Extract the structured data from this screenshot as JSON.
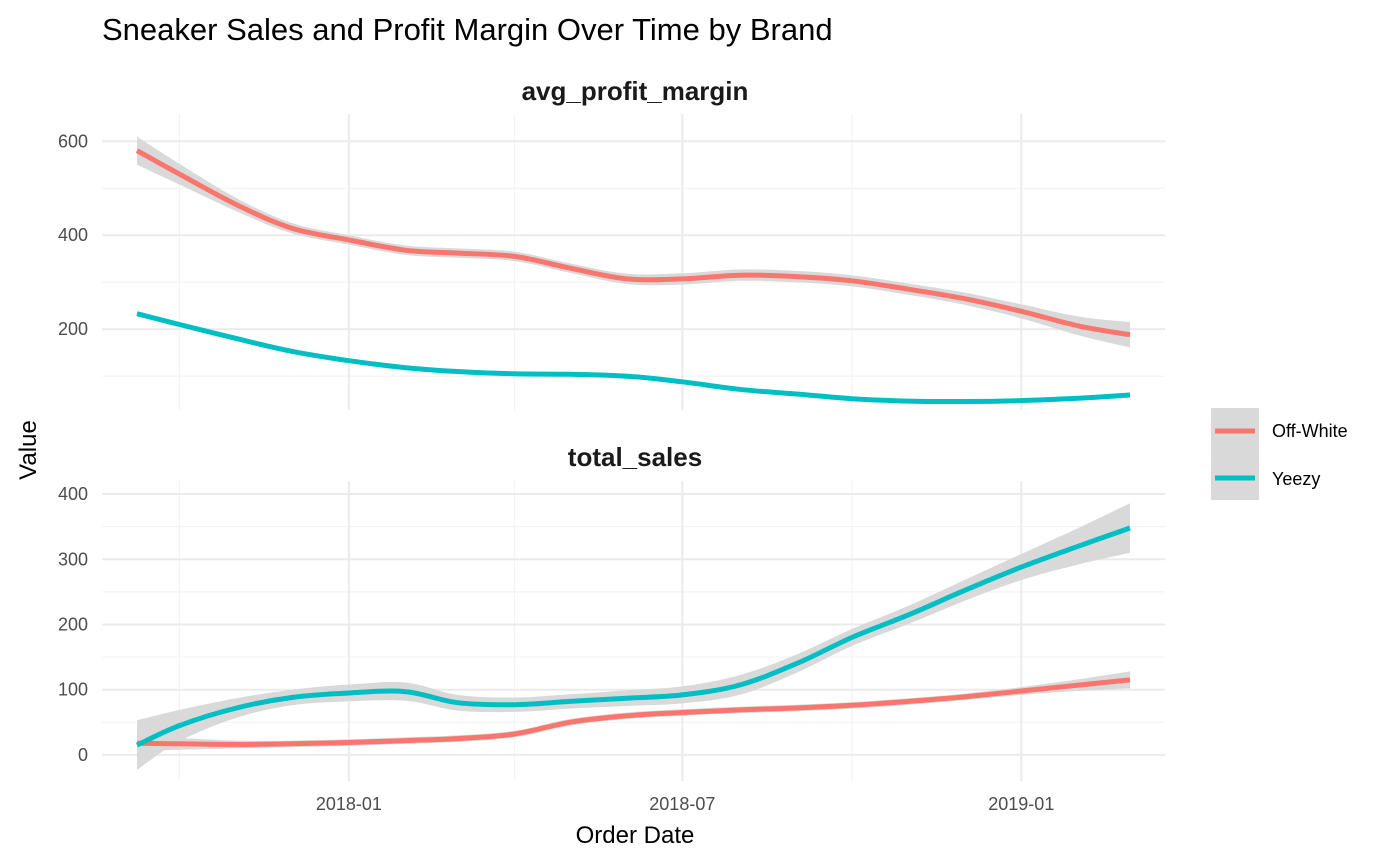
{
  "chart_data": {
    "type": "line",
    "title": "Sneaker Sales and Profit Margin Over Time by Brand",
    "xlabel": "Order Date",
    "ylabel": "Value",
    "x_ticks": [
      "2018-01",
      "2018-07",
      "2019-01"
    ],
    "legend_placement": "right",
    "grid": true,
    "confidence_band_color": "#d9d9d9",
    "legend": [
      {
        "name": "Off-White",
        "color": "#f8766d"
      },
      {
        "name": "Yeezy",
        "color": "#00bfc4"
      }
    ],
    "panels": [
      {
        "name": "avg_profit_margin",
        "ylim": [
          28,
          658
        ],
        "y_ticks": [
          "200",
          "400",
          "600"
        ],
        "y_tick_values": [
          200,
          400,
          600
        ],
        "series": [
          {
            "name": "Off-White",
            "color": "#f8766d",
            "points": [
              [
                "2017-09-08",
                580
              ],
              [
                "2017-10-01",
                530
              ],
              [
                "2017-11-01",
                465
              ],
              [
                "2017-12-01",
                415
              ],
              [
                "2018-01-01",
                390
              ],
              [
                "2018-02-01",
                368
              ],
              [
                "2018-03-01",
                362
              ],
              [
                "2018-04-01",
                355
              ],
              [
                "2018-05-01",
                330
              ],
              [
                "2018-06-01",
                307
              ],
              [
                "2018-07-01",
                307
              ],
              [
                "2018-08-01",
                315
              ],
              [
                "2018-09-01",
                312
              ],
              [
                "2018-10-01",
                303
              ],
              [
                "2018-11-01",
                285
              ],
              [
                "2018-12-01",
                265
              ],
              [
                "2019-01-01",
                238
              ],
              [
                "2019-02-01",
                207
              ],
              [
                "2019-03-01",
                188
              ]
            ],
            "band_halfwidth": [
              30,
              22,
              14,
              11,
              10,
              10,
              10,
              10,
              10,
              11,
              12,
              12,
              12,
              12,
              12,
              13,
              15,
              20,
              27
            ]
          },
          {
            "name": "Yeezy",
            "color": "#00bfc4",
            "points": [
              [
                "2017-09-08",
                233
              ],
              [
                "2017-10-01",
                210
              ],
              [
                "2017-11-01",
                180
              ],
              [
                "2017-12-01",
                153
              ],
              [
                "2018-01-01",
                133
              ],
              [
                "2018-02-01",
                118
              ],
              [
                "2018-03-01",
                110
              ],
              [
                "2018-04-01",
                105
              ],
              [
                "2018-05-01",
                104
              ],
              [
                "2018-06-01",
                100
              ],
              [
                "2018-07-01",
                88
              ],
              [
                "2018-08-01",
                72
              ],
              [
                "2018-09-01",
                62
              ],
              [
                "2018-10-01",
                52
              ],
              [
                "2018-11-01",
                47
              ],
              [
                "2018-12-01",
                46
              ],
              [
                "2019-01-01",
                48
              ],
              [
                "2019-02-01",
                53
              ],
              [
                "2019-03-01",
                60
              ]
            ],
            "band_halfwidth": [
              4,
              3,
              3,
              3,
              3,
              3,
              3,
              3,
              3,
              3,
              3,
              3,
              3,
              3,
              3,
              3,
              3,
              3,
              4
            ]
          }
        ]
      },
      {
        "name": "total_sales",
        "ylim": [
          -40,
          420
        ],
        "y_ticks": [
          "0",
          "100",
          "200",
          "300",
          "400"
        ],
        "y_tick_values": [
          0,
          100,
          200,
          300,
          400
        ],
        "series": [
          {
            "name": "Off-White",
            "color": "#f8766d",
            "points": [
              [
                "2017-09-08",
                18
              ],
              [
                "2017-10-01",
                17
              ],
              [
                "2017-11-01",
                16
              ],
              [
                "2017-12-01",
                17
              ],
              [
                "2018-01-01",
                19
              ],
              [
                "2018-02-01",
                22
              ],
              [
                "2018-03-01",
                25
              ],
              [
                "2018-04-01",
                32
              ],
              [
                "2018-05-01",
                50
              ],
              [
                "2018-06-01",
                60
              ],
              [
                "2018-07-01",
                65
              ],
              [
                "2018-08-01",
                69
              ],
              [
                "2018-09-01",
                72
              ],
              [
                "2018-10-01",
                76
              ],
              [
                "2018-11-01",
                82
              ],
              [
                "2018-12-01",
                89
              ],
              [
                "2019-01-01",
                98
              ],
              [
                "2019-02-01",
                107
              ],
              [
                "2019-03-01",
                115
              ]
            ],
            "band_halfwidth": [
              12,
              9,
              6,
              5,
              5,
              5,
              5,
              5,
              5,
              5,
              5,
              5,
              5,
              5,
              5,
              5,
              6,
              9,
              13
            ]
          },
          {
            "name": "Yeezy",
            "color": "#00bfc4",
            "points": [
              [
                "2017-09-08",
                15
              ],
              [
                "2017-10-01",
                45
              ],
              [
                "2017-11-01",
                72
              ],
              [
                "2017-12-01",
                88
              ],
              [
                "2018-01-01",
                95
              ],
              [
                "2018-02-01",
                97
              ],
              [
                "2018-03-01",
                80
              ],
              [
                "2018-04-01",
                77
              ],
              [
                "2018-05-01",
                82
              ],
              [
                "2018-06-01",
                87
              ],
              [
                "2018-07-01",
                92
              ],
              [
                "2018-08-01",
                107
              ],
              [
                "2018-09-01",
                140
              ],
              [
                "2018-10-01",
                180
              ],
              [
                "2018-11-01",
                215
              ],
              [
                "2018-12-01",
                252
              ],
              [
                "2019-01-01",
                288
              ],
              [
                "2019-02-01",
                320
              ],
              [
                "2019-03-01",
                348
              ]
            ],
            "band_halfwidth": [
              38,
              24,
              15,
              12,
              13,
              14,
              12,
              11,
              11,
              12,
              13,
              15,
              14,
              13,
              14,
              16,
              20,
              28,
              38
            ]
          }
        ]
      }
    ]
  }
}
